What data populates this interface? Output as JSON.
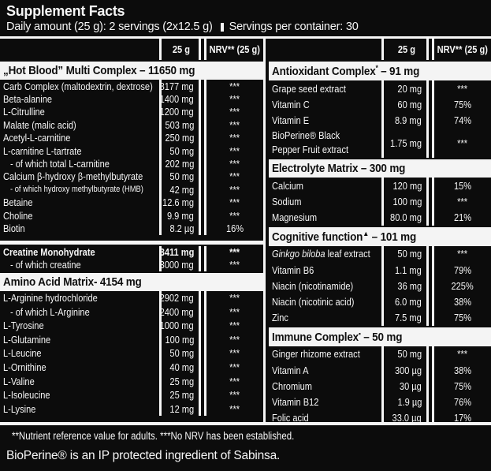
{
  "header": {
    "title": "Supplement Facts",
    "daily_amount": "Daily amount (25 g): 2 servings (2x12.5 g)",
    "servings_per_container": "Servings per container: 30"
  },
  "column_headers": {
    "qty": "25 g",
    "nrv": "NRV** (25 g)"
  },
  "tables": [
    {
      "id": "left",
      "sections": [
        {
          "band": true,
          "title": "„Hot Blood” Multi Complex – 11650 mg",
          "rows": [
            {
              "name": "Carb Complex (maltodextrin, dextrose)",
              "qty": "8177 mg",
              "nrv": "***"
            },
            {
              "name": "Beta-alanine",
              "qty": "1400 mg",
              "nrv": "***"
            },
            {
              "name": "L-Citrulline",
              "qty": "1200 mg",
              "nrv": "***"
            },
            {
              "name": "Malate (malic acid)",
              "qty": "503 mg",
              "nrv": "***"
            },
            {
              "name": "Acetyl-L-carnitine",
              "qty": "250 mg",
              "nrv": "***"
            },
            {
              "name": "L-carnitine L-tartrate",
              "qty": "50 mg",
              "nrv": "***"
            },
            {
              "name": "- of which total L-carnitine",
              "qty": "202 mg",
              "nrv": "***",
              "indent": true
            },
            {
              "name": "Calcium β-hydroxy β-methylbutyrate",
              "qty": "50 mg",
              "nrv": "***"
            },
            {
              "name": "- of which hydroxy methylbutyrate (HMB)",
              "qty": "42 mg",
              "nrv": "***",
              "indent": true,
              "small": true
            },
            {
              "name": "Betaine",
              "qty": "12.6 mg",
              "nrv": "***"
            },
            {
              "name": "Choline",
              "qty": "9.9 mg",
              "nrv": "***"
            },
            {
              "name": "Biotin",
              "qty": "8.2 µg",
              "nrv": "16%"
            }
          ]
        },
        {
          "band": false,
          "divider": true,
          "rows": [
            {
              "name": "Creatine Monohydrate",
              "qty": "3411 mg",
              "nrv": "***",
              "bold": true
            },
            {
              "name": "- of which creatine",
              "qty": "3000 mg",
              "nrv": "***",
              "indent": true
            }
          ]
        },
        {
          "band": true,
          "title": "Amino Acid Matrix- 4154 mg",
          "rows": [
            {
              "name": "L-Arginine hydrochloride",
              "qty": "2902 mg",
              "nrv": "***"
            },
            {
              "name": "- of which L-Arginine",
              "qty": "2400 mg",
              "nrv": "***",
              "indent": true
            },
            {
              "name": "L-Tyrosine",
              "qty": "1000 mg",
              "nrv": "***"
            },
            {
              "name": "L-Glutamine",
              "qty": "100 mg",
              "nrv": "***"
            },
            {
              "name": "L-Leucine",
              "qty": "50 mg",
              "nrv": "***"
            },
            {
              "name": "L-Ornithine",
              "qty": "40 mg",
              "nrv": "***"
            },
            {
              "name": "L-Valine",
              "qty": "25 mg",
              "nrv": "***"
            },
            {
              "name": "L-Isoleucine",
              "qty": "25 mg",
              "nrv": "***"
            },
            {
              "name": "L-Lysine",
              "qty": "12 mg",
              "nrv": "***"
            }
          ]
        }
      ]
    },
    {
      "id": "right",
      "sections": [
        {
          "band": true,
          "title": "Antioxidant Complex",
          "sup": "*",
          "rest": " – 91 mg",
          "rows": [
            {
              "name": "Grape seed extract",
              "qty": "20 mg",
              "nrv": "***"
            },
            {
              "name": "Vitamin C",
              "qty": "60 mg",
              "nrv": "75%"
            },
            {
              "name": "Vitamin E",
              "qty": "8.9 mg",
              "nrv": "74%"
            },
            {
              "name": "BioPerine® Black Pepper Fruit extract",
              "qty": "1.75 mg",
              "nrv": "***",
              "wrap": true
            }
          ]
        },
        {
          "band": true,
          "title": "Electrolyte Matrix – 300 mg",
          "rows": [
            {
              "name": "Calcium",
              "qty": "120 mg",
              "nrv": "15%"
            },
            {
              "name": "Sodium",
              "qty": "100 mg",
              "nrv": "***"
            },
            {
              "name": "Magnesium",
              "qty": "80.0 mg",
              "nrv": "21%"
            }
          ]
        },
        {
          "band": true,
          "title": "Cognitive function",
          "sup": "▲",
          "rest": " – 101 mg",
          "rows": [
            {
              "italic": "Ginkgo biloba",
              "name": " leaf extract",
              "qty": "50 mg",
              "nrv": "***"
            },
            {
              "name": "Vitamin B6",
              "qty": "1.1 mg",
              "nrv": "79%"
            },
            {
              "name": "Niacin (nicotinamide)",
              "qty": "36 mg",
              "nrv": "225%"
            },
            {
              "name": "Niacin (nicotinic acid)",
              "qty": "6.0 mg",
              "nrv": "38%"
            },
            {
              "name": "Zinc",
              "qty": "7.5 mg",
              "nrv": "75%"
            }
          ]
        },
        {
          "band": true,
          "title": "Immune Complex",
          "sup": "▪",
          "rest": " – 50 mg",
          "rows": [
            {
              "name": "Ginger rhizome extract",
              "qty": "50 mg",
              "nrv": "***"
            },
            {
              "name": "Vitamin A",
              "qty": "300 µg",
              "nrv": "38%"
            },
            {
              "name": "Chromium",
              "qty": "30 µg",
              "nrv": "75%"
            },
            {
              "name": "Vitamin B12",
              "qty": "1.9 µg",
              "nrv": "76%"
            },
            {
              "name": "Folic acid",
              "qty": "33.0 µg",
              "nrv": "17%"
            }
          ]
        }
      ]
    }
  ],
  "footnotes": [
    "**Nutrient reference value for adults. ***No NRV has been established.",
    "BioPerine® is an IP protected ingredient of Sabinsa."
  ],
  "colors": {
    "background": "#0c0c0c",
    "text": "#f6f6f6",
    "section_band": "#f4f4f4"
  }
}
